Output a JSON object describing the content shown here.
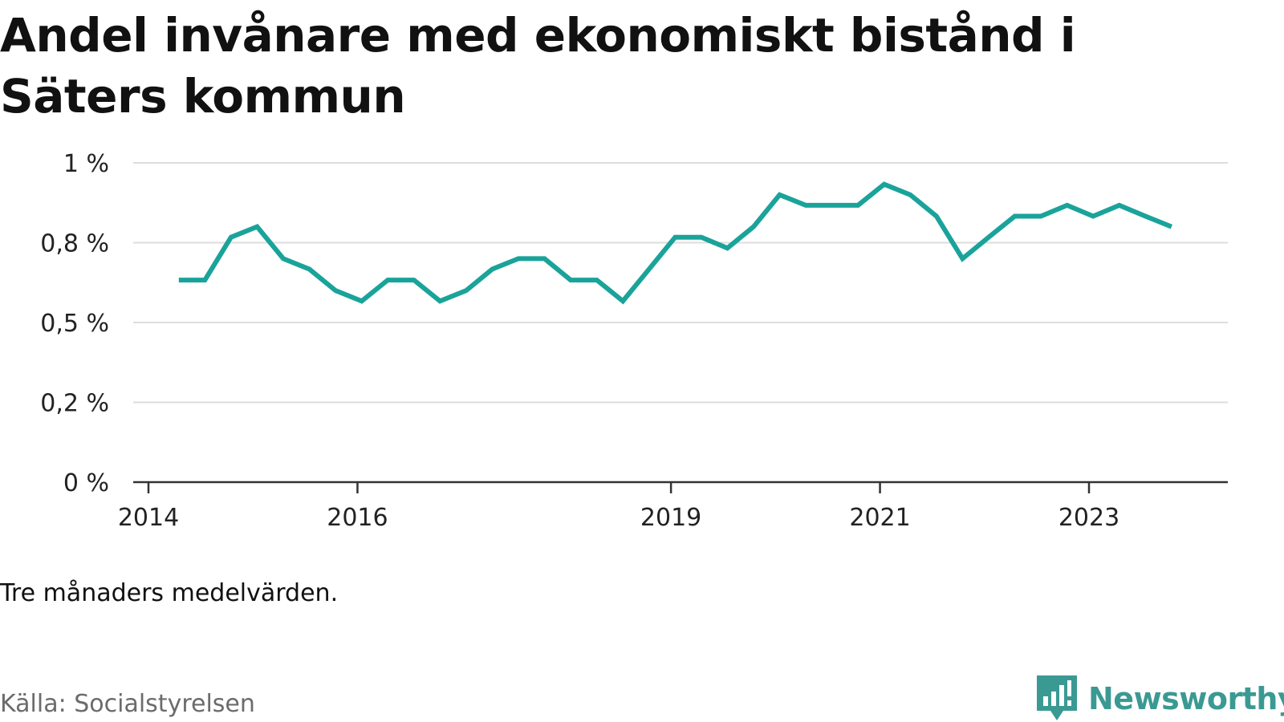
{
  "title": "Andel invånare med ekonomiskt bistånd i Säters kommun",
  "note": "Tre månaders medelvärden.",
  "source": "Källa: Socialstyrelsen",
  "brand": "Newsworthy",
  "colors": {
    "line": "#1aa39a",
    "grid": "#dddddd",
    "axis": "#333333",
    "brand": "#3a9a93"
  },
  "chart_data": {
    "type": "line",
    "title": "Andel invånare med ekonomiskt bistånd i Säters kommun",
    "xlabel": "",
    "ylabel": "",
    "ylim": [
      0,
      1
    ],
    "grid": true,
    "y_ticks": [
      {
        "value": 0,
        "label": "0 %"
      },
      {
        "value": 0.25,
        "label": "0,2 %"
      },
      {
        "value": 0.5,
        "label": "0,5 %"
      },
      {
        "value": 0.75,
        "label": "0,8 %"
      },
      {
        "value": 1,
        "label": "1 %"
      }
    ],
    "x_ticks": [
      {
        "value": 2014.0,
        "label": "2014"
      },
      {
        "value": 2016.0,
        "label": "2016"
      },
      {
        "value": 2019.0,
        "label": "2019"
      },
      {
        "value": 2021.0,
        "label": "2021"
      },
      {
        "value": 2023.0,
        "label": "2023"
      }
    ],
    "xlim": [
      2014.0,
      2024.3
    ],
    "series": [
      {
        "x": [
          2014.29,
          2014.54,
          2014.79,
          2015.04,
          2015.29,
          2015.54,
          2015.79,
          2016.04,
          2016.29,
          2016.54,
          2016.79,
          2017.04,
          2017.29,
          2017.54,
          2017.79,
          2018.04,
          2018.29,
          2018.54,
          2018.79,
          2019.04,
          2019.29,
          2019.54,
          2019.79,
          2020.04,
          2020.29,
          2020.54,
          2020.79,
          2021.04,
          2021.29,
          2021.54,
          2021.79,
          2022.04,
          2022.29,
          2022.54,
          2022.79,
          2023.04,
          2023.29,
          2023.54,
          2023.79
        ],
        "values": [
          0.633,
          0.633,
          0.767,
          0.8,
          0.7,
          0.667,
          0.6,
          0.567,
          0.633,
          0.633,
          0.567,
          0.6,
          0.667,
          0.7,
          0.7,
          0.633,
          0.633,
          0.567,
          0.667,
          0.767,
          0.767,
          0.733,
          0.8,
          0.9,
          0.867,
          0.867,
          0.867,
          0.933,
          0.9,
          0.833,
          0.7,
          0.767,
          0.833,
          0.833,
          0.867,
          0.833,
          0.867,
          0.833,
          0.8
        ]
      }
    ]
  }
}
